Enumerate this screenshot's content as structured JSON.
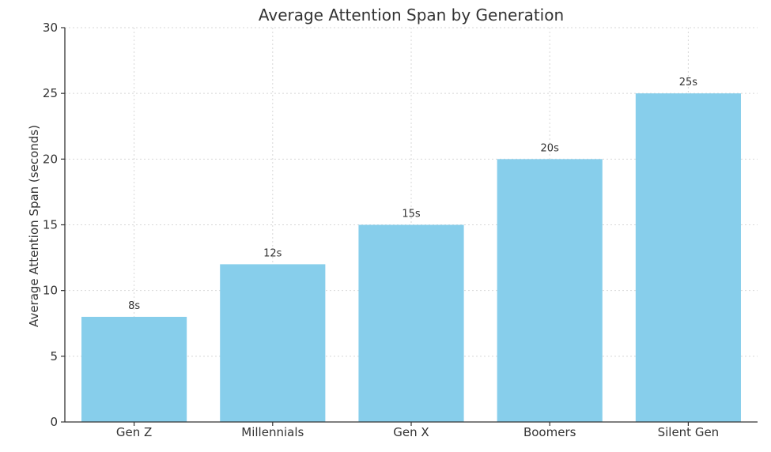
{
  "chart_data": {
    "type": "bar",
    "title": "Average Attention Span by Generation",
    "xlabel": "",
    "ylabel": "Average Attention Span (seconds)",
    "categories": [
      "Gen Z",
      "Millennials",
      "Gen X",
      "Boomers",
      "Silent Gen"
    ],
    "values": [
      8,
      12,
      15,
      20,
      25
    ],
    "data_labels": [
      "8s",
      "12s",
      "15s",
      "20s",
      "25s"
    ],
    "ylim": [
      0,
      30
    ],
    "yticks": [
      0,
      5,
      10,
      15,
      20,
      25,
      30
    ],
    "grid": true,
    "bar_color": "#87CEEB"
  }
}
